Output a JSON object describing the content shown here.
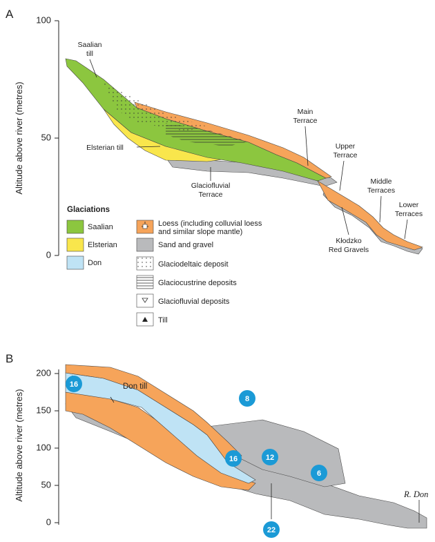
{
  "panel_a": {
    "label": "A",
    "y_axis": {
      "title": "Altitude above river (metres)",
      "ticks": [
        0,
        50,
        100
      ]
    },
    "annotations": [
      {
        "lines": [
          "Saalian",
          "till"
        ]
      },
      {
        "lines": [
          "Elsterian till"
        ]
      },
      {
        "lines": [
          "Glaciofluvial",
          "Terrace"
        ]
      },
      {
        "lines": [
          "Main",
          "Terrace"
        ]
      },
      {
        "lines": [
          "Upper",
          "Terrace"
        ]
      },
      {
        "lines": [
          "Middle",
          "Terraces"
        ]
      },
      {
        "lines": [
          "Lower",
          "Terraces"
        ]
      },
      {
        "lines": [
          "Kłodzko",
          "Red Gravels"
        ]
      }
    ],
    "legend": {
      "title": "Glaciations",
      "glaciations": [
        "Saalian",
        "Elsterian",
        "Don"
      ],
      "deposits": [
        {
          "lines": [
            "Loess (including colluvial loess",
            "and similar slope mantle)"
          ]
        },
        {
          "lines": [
            "Sand and gravel"
          ]
        },
        {
          "lines": [
            "Glaciodeltaic deposit"
          ]
        },
        {
          "lines": [
            "Glaciocustrine deposits"
          ]
        },
        {
          "lines": [
            "Glaciofluvial deposits"
          ]
        },
        {
          "lines": [
            "Till"
          ]
        }
      ]
    }
  },
  "panel_b": {
    "label": "B",
    "y_axis": {
      "title": "Altitude above river (metres)",
      "ticks": [
        0,
        50,
        100,
        150,
        200
      ]
    },
    "annotations": [
      "Don till",
      "R. Don"
    ],
    "markers": [
      "16",
      "8",
      "16",
      "12",
      "6",
      "22"
    ]
  }
}
